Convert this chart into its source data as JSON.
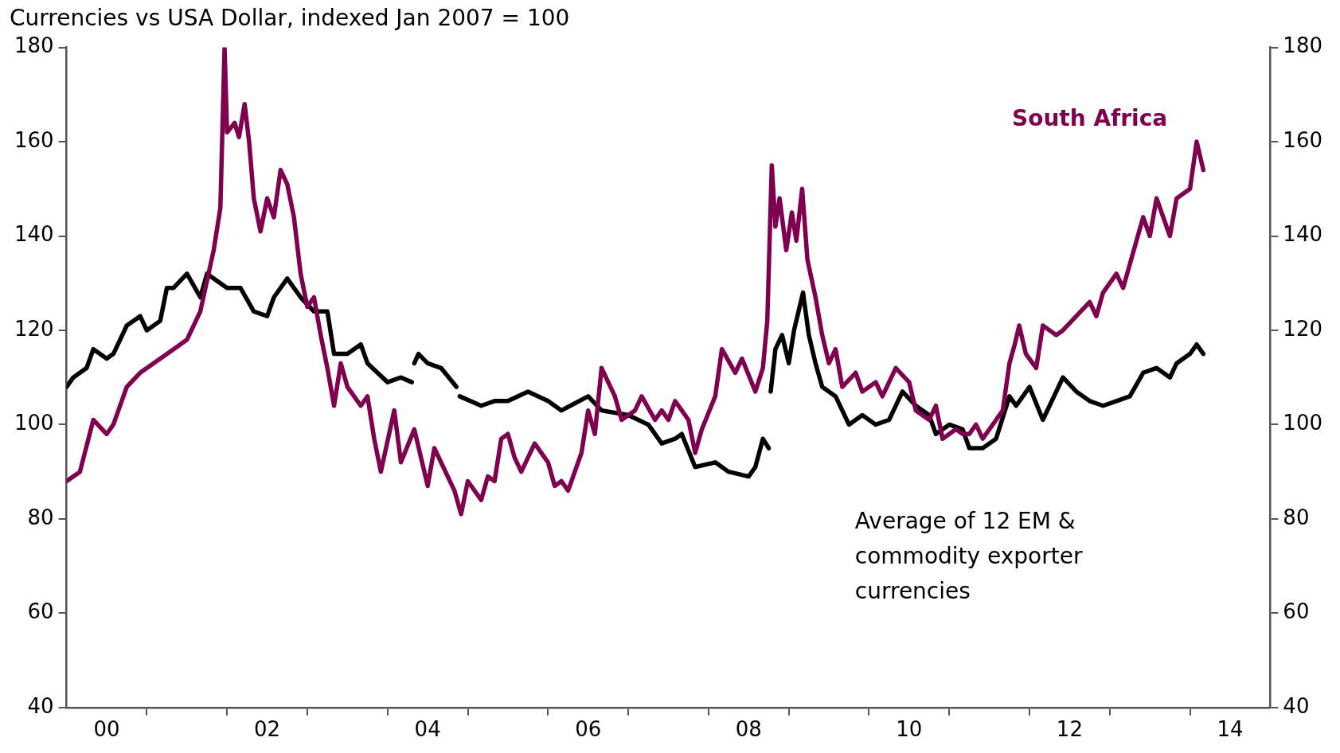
{
  "chart_data": {
    "type": "line",
    "title": "Currencies vs USA Dollar, indexed Jan 2007 = 100",
    "xlim": [
      "2000-01",
      "2015-01"
    ],
    "xticks": [
      {
        "value": "2000-07",
        "label": "00"
      },
      {
        "value": "2001",
        "label": null
      },
      {
        "value": "2002",
        "label": null
      },
      {
        "value": "2002-07",
        "label": "02"
      },
      {
        "value": "2003",
        "label": null
      },
      {
        "value": "2004",
        "label": null
      },
      {
        "value": "2004-07",
        "label": "04"
      },
      {
        "value": "2005",
        "label": null
      },
      {
        "value": "2006",
        "label": null
      },
      {
        "value": "2006-07",
        "label": "06"
      },
      {
        "value": "2007",
        "label": null
      },
      {
        "value": "2008",
        "label": null
      },
      {
        "value": "2008-07",
        "label": "08"
      },
      {
        "value": "2009",
        "label": null
      },
      {
        "value": "2010",
        "label": null
      },
      {
        "value": "2010-07",
        "label": "10"
      },
      {
        "value": "2011",
        "label": null
      },
      {
        "value": "2012",
        "label": null
      },
      {
        "value": "2012-07",
        "label": "12"
      },
      {
        "value": "2013",
        "label": null
      },
      {
        "value": "2014",
        "label": null
      },
      {
        "value": "2014-07",
        "label": "14"
      }
    ],
    "ylim": [
      40,
      180
    ],
    "yticks": [
      40,
      60,
      80,
      100,
      120,
      140,
      160,
      180
    ],
    "y2lim": [
      40,
      180
    ],
    "y2ticks": [
      40,
      60,
      80,
      100,
      120,
      140,
      160,
      180
    ],
    "grid": false,
    "legend": false,
    "line_style": "solid",
    "marker": "none",
    "series": [
      {
        "name": "South Africa",
        "color": "#800050",
        "x": [
          "2000-01",
          "2000-03",
          "2000-05",
          "2000-07",
          "2000-08",
          "2000-10",
          "2000-12",
          "2001-02",
          "2001-05",
          "2001-07",
          "2001-09",
          "2001-11",
          "2001-12-01",
          "2001-12-20",
          "2002-01",
          "2002-02-05",
          "2002-02-25",
          "2002-03-20",
          "2002-04-10",
          "2002-05",
          "2002-06",
          "2002-07",
          "2002-08",
          "2002-09",
          "2002-10",
          "2002-11",
          "2002-12",
          "2003-01",
          "2003-02",
          "2003-03",
          "2003-04",
          "2003-05",
          "2003-06",
          "2003-07",
          "2003-09",
          "2003-10",
          "2003-11",
          "2003-12",
          "2004-02",
          "2004-03",
          "2004-05",
          "2004-07",
          "2004-08",
          "2004-11",
          "2004-12",
          "2005-01",
          "2005-03",
          "2005-04",
          "2005-05",
          "2005-06",
          "2005-07",
          "2005-08",
          "2005-09",
          "2005-11",
          "2006-01",
          "2006-02",
          "2006-03",
          "2006-04",
          "2006-06",
          "2006-07",
          "2006-08",
          "2006-09",
          "2006-11",
          "2006-12",
          "2007-02",
          "2007-03",
          "2007-05",
          "2007-06",
          "2007-07",
          "2007-08",
          "2007-10",
          "2007-11",
          "2007-12",
          "2008-02",
          "2008-03",
          "2008-05",
          "2008-06",
          "2008-08",
          "2008-09-05",
          "2008-09-25",
          "2008-10-15",
          "2008-11-01",
          "2008-11-20",
          "2008-12-20",
          "2009-01-15",
          "2009-02-05",
          "2009-03-01",
          "2009-03-25",
          "2009-05",
          "2009-06",
          "2009-07",
          "2009-08",
          "2009-09",
          "2009-11",
          "2009-12",
          "2010-02",
          "2010-03",
          "2010-05",
          "2010-07",
          "2010-08",
          "2010-10",
          "2010-11",
          "2010-12",
          "2011-02",
          "2011-03",
          "2011-04",
          "2011-05",
          "2011-06",
          "2011-08",
          "2011-09",
          "2011-10",
          "2011-10-25",
          "2011-11-15",
          "2011-12-15",
          "2012-02",
          "2012-03",
          "2012-05",
          "2012-06",
          "2012-08",
          "2012-10",
          "2012-11",
          "2012-12",
          "2013-02",
          "2013-03",
          "2013-06",
          "2013-07",
          "2013-08",
          "2013-10",
          "2013-11",
          "2014-01",
          "2014-02",
          "2014-03"
        ],
        "values": [
          88,
          90,
          101,
          98,
          100,
          108,
          111,
          113,
          116,
          118,
          124,
          137,
          146,
          180,
          162,
          164,
          161,
          168,
          160,
          148,
          141,
          148,
          144,
          154,
          151,
          144,
          132,
          125,
          127,
          119,
          112,
          104,
          113,
          108,
          104,
          106,
          97,
          90,
          103,
          92,
          99,
          87,
          95,
          86,
          81,
          88,
          84,
          89,
          88,
          97,
          98,
          93,
          90,
          96,
          92,
          87,
          88,
          86,
          94,
          103,
          98,
          112,
          106,
          101,
          103,
          106,
          101,
          103,
          101,
          105,
          101,
          94,
          99,
          106,
          116,
          111,
          114,
          107,
          112,
          122,
          155,
          142,
          148,
          137,
          145,
          139,
          150,
          135,
          127,
          119,
          113,
          116,
          108,
          111,
          107,
          109,
          106,
          112,
          109,
          103,
          101,
          104,
          97,
          99,
          98,
          98,
          100,
          97,
          101,
          103,
          113,
          117,
          121,
          115,
          112,
          121,
          119,
          120,
          123,
          126,
          123,
          128,
          132,
          129,
          144,
          140,
          148,
          140,
          148,
          150,
          160,
          154
        ]
      },
      {
        "name": "Average of 12 EM & commodity exporter currencies",
        "color": "#000000",
        "x": [
          "2000-01",
          "2000-02",
          "2000-04",
          "2000-05",
          "2000-07",
          "2000-08",
          "2000-10",
          "2000-12",
          "2001-01",
          "2001-03",
          "2001-04",
          "2001-05",
          "2001-07",
          "2001-09",
          "2001-10",
          "2002-01",
          "2002-03",
          "2002-05",
          "2002-07",
          "2002-08",
          "2002-10",
          "2002-12",
          "2003-02",
          "2003-04",
          "2003-05",
          "2003-07",
          "2003-09",
          "2003-10",
          "2004-01",
          "2004-03",
          "2004-04-20",
          "2004-04-25",
          "2004-05-01",
          "2004-05-20",
          "2004-07",
          "2004-09",
          "2004-11-10",
          "2004-11-15",
          "2004-11-25",
          "2005-03",
          "2005-05",
          "2005-07",
          "2005-10",
          "2006-01",
          "2006-03",
          "2006-07",
          "2006-09",
          "2007-01",
          "2007-04",
          "2007-06",
          "2007-08",
          "2007-09",
          "2007-11",
          "2008-02",
          "2008-04",
          "2008-07",
          "2008-08",
          "2008-09-05",
          "2008-10-01",
          "2008-10-05",
          "2008-10-10",
          "2008-11-01",
          "2008-12-01",
          "2009-01-01",
          "2009-01-25",
          "2009-03-05",
          "2009-04",
          "2009-05",
          "2009-06",
          "2009-08",
          "2009-10",
          "2009-12",
          "2010-02",
          "2010-04",
          "2010-06",
          "2010-08",
          "2010-10",
          "2010-11",
          "2011-01",
          "2011-03",
          "2011-04",
          "2011-06",
          "2011-08",
          "2011-10",
          "2011-11",
          "2012-01",
          "2012-03",
          "2012-04",
          "2012-06",
          "2012-08",
          "2012-10",
          "2012-12",
          "2013-02",
          "2013-04",
          "2013-06",
          "2013-08",
          "2013-10",
          "2013-11",
          "2014-01",
          "2014-02",
          "2014-03"
        ],
        "values": [
          108,
          110,
          112,
          116,
          114,
          115,
          121,
          123,
          120,
          122,
          129,
          129,
          132,
          127,
          132,
          129,
          129,
          124,
          123,
          127,
          131,
          127,
          124,
          124,
          115,
          115,
          117,
          113,
          109,
          110,
          109,
          null,
          113,
          115,
          113,
          112,
          108,
          null,
          106,
          104,
          105,
          105,
          107,
          105,
          103,
          106,
          103,
          102,
          100,
          96,
          97,
          98,
          91,
          92,
          90,
          89,
          91,
          97,
          95,
          null,
          107,
          116,
          119,
          113,
          120,
          128,
          119,
          113,
          108,
          106,
          100,
          102,
          100,
          101,
          107,
          104,
          102,
          98,
          100,
          99,
          95,
          95,
          97,
          106,
          104,
          108,
          101,
          104,
          110,
          107,
          105,
          104,
          105,
          106,
          111,
          112,
          110,
          113,
          115,
          117,
          115
        ]
      }
    ]
  }
}
